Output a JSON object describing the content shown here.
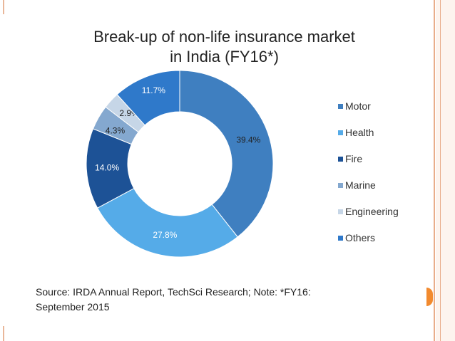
{
  "chart_data": {
    "type": "pie",
    "donut": true,
    "title_lines": [
      "Break-up of non-life insurance market",
      "in India (FY16*)"
    ],
    "slices": [
      {
        "name": "Motor",
        "value": 39.4,
        "label": "39.4%",
        "color": "#3f7fc0"
      },
      {
        "name": "Health",
        "value": 27.8,
        "label": "27.8%",
        "color": "#55abe8"
      },
      {
        "name": "Fire",
        "value": 14.0,
        "label": "14.0%",
        "color": "#1d5296"
      },
      {
        "name": "Marine",
        "value": 4.3,
        "label": "4.3%",
        "color": "#84a8cf"
      },
      {
        "name": "Engineering",
        "value": 2.9,
        "label": "2.9%",
        "color": "#c6d6e7"
      },
      {
        "name": "Others",
        "value": 11.7,
        "label": "11.7%",
        "color": "#2f79ca"
      }
    ],
    "legend_position": "right"
  },
  "source_lines": [
    "Source: IRDA Annual Report, TechSci Research;  Note: *FY16:",
    "September 2015"
  ],
  "theme": {
    "accent": "#f28a2e",
    "rule": "#e9ad8a"
  }
}
